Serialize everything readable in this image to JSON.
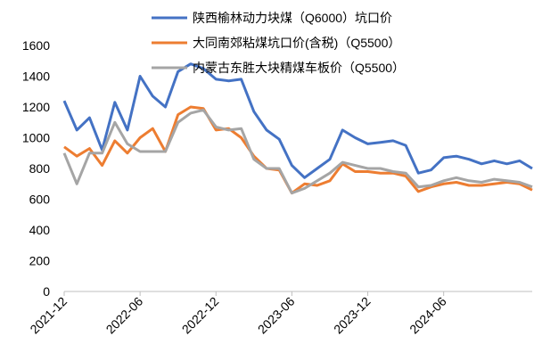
{
  "chart_data": {
    "type": "line",
    "x": [
      "2021-12",
      "2022-01",
      "2022-02",
      "2022-03",
      "2022-04",
      "2022-05",
      "2022-06",
      "2022-07",
      "2022-08",
      "2022-09",
      "2022-10",
      "2022-11",
      "2022-12",
      "2023-01",
      "2023-02",
      "2023-03",
      "2023-04",
      "2023-05",
      "2023-06",
      "2023-07",
      "2023-08",
      "2023-09",
      "2023-10",
      "2023-11",
      "2023-12",
      "2024-01",
      "2024-02",
      "2024-03",
      "2024-04",
      "2024-05",
      "2024-06",
      "2024-07",
      "2024-08",
      "2024-09",
      "2024-10",
      "2024-11",
      "2024-12",
      "2025-01"
    ],
    "xticks": [
      "2021-12",
      "2022-06",
      "2022-12",
      "2023-06",
      "2023-12",
      "2024-06"
    ],
    "ylim": [
      0,
      1600
    ],
    "yticks": [
      0,
      200,
      400,
      600,
      800,
      1000,
      1200,
      1400,
      1600
    ],
    "grid": false,
    "legend": "top",
    "series": [
      {
        "name": "陕西榆林动力块煤（Q6000）坑口价",
        "color": "#4472c4",
        "values": [
          1240,
          1050,
          1130,
          920,
          1230,
          1050,
          1400,
          1270,
          1200,
          1430,
          1480,
          1450,
          1380,
          1370,
          1380,
          1170,
          1050,
          990,
          820,
          740,
          800,
          860,
          1050,
          1000,
          960,
          970,
          980,
          950,
          770,
          790,
          870,
          880,
          860,
          830,
          850,
          830,
          850,
          800
        ]
      },
      {
        "name": "大同南郊粘煤坑口价(含税)（Q5500）",
        "color": "#ed7d31",
        "values": [
          940,
          880,
          930,
          820,
          980,
          900,
          1000,
          1060,
          910,
          1150,
          1200,
          1190,
          1050,
          1060,
          1000,
          880,
          800,
          790,
          640,
          700,
          690,
          720,
          830,
          780,
          780,
          770,
          770,
          750,
          650,
          680,
          700,
          710,
          690,
          690,
          700,
          710,
          700,
          660
        ]
      },
      {
        "name": "内蒙古东胜大块精煤车板价（Q5500）",
        "color": "#a5a5a5",
        "values": [
          900,
          700,
          900,
          900,
          1100,
          960,
          910,
          910,
          910,
          1100,
          1160,
          1180,
          1070,
          1050,
          1060,
          860,
          800,
          800,
          640,
          670,
          720,
          770,
          840,
          820,
          800,
          800,
          780,
          770,
          680,
          690,
          720,
          740,
          720,
          710,
          730,
          720,
          710,
          680
        ]
      }
    ]
  }
}
